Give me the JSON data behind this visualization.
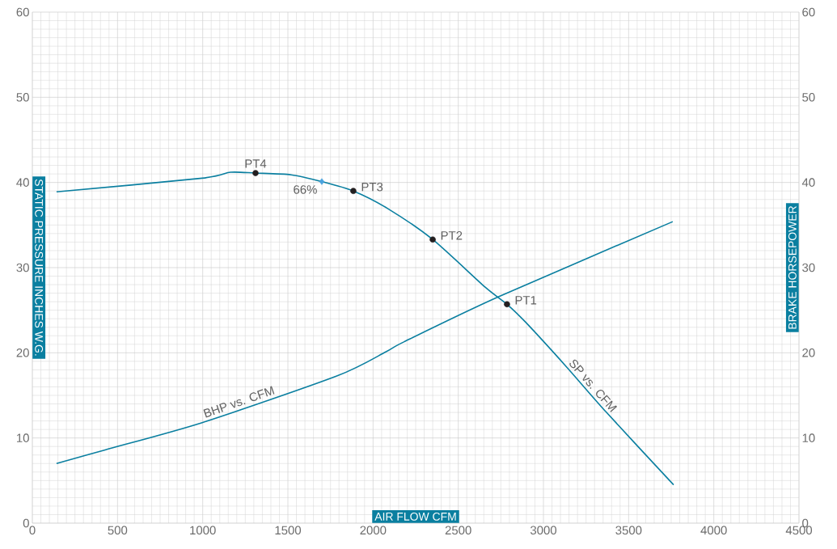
{
  "chart_data": {
    "type": "line",
    "xlabel": "AIR FLOW CFM",
    "ylabel": "STATIC PRESSURE INCHES W.G.",
    "y2label": "BRAKE HORSEPOWER",
    "xlim": [
      0,
      4500
    ],
    "xticks": [
      0,
      500,
      1000,
      1500,
      2000,
      2500,
      3000,
      3500,
      4000,
      4500
    ],
    "ylim": [
      0,
      60
    ],
    "yticks": [
      0,
      10,
      20,
      30,
      40,
      50,
      60
    ],
    "y2lim": [
      0,
      60
    ],
    "y2ticks": [
      0,
      10,
      20,
      30,
      40,
      50,
      60
    ],
    "grid": true,
    "series": [
      {
        "name": "SP vs. CFM",
        "color": "#0a7fa0",
        "x": [
          142,
          997,
          1163,
          1310,
          1519,
          1699,
          1884,
          2089,
          2350,
          2658,
          2786,
          2895,
          3133,
          3370,
          3764
        ],
        "values": [
          38.9,
          40.5,
          41.2,
          41.1,
          40.9,
          40.1,
          39.0,
          36.9,
          33.3,
          27.7,
          25.7,
          23.6,
          18.4,
          13.0,
          4.5
        ]
      },
      {
        "name": "BHP vs. CFM",
        "axis": "y2",
        "color": "#0a7fa0",
        "x": [
          142,
          427,
          997,
          1790,
          2074,
          2183,
          2739,
          3759
        ],
        "values": [
          7.0,
          8.6,
          11.8,
          17.3,
          20.1,
          21.3,
          26.6,
          35.4
        ]
      },
      {
        "type": "scatter",
        "color": "#231f20",
        "marker": "circle",
        "x": [
          2786,
          2350,
          1884,
          1310
        ],
        "values": [
          25.7,
          33.3,
          39.0,
          41.1
        ]
      },
      {
        "type": "scatter",
        "color": "#4aa3df",
        "marker": "diamond",
        "x": [
          1699
        ],
        "values": [
          40.1
        ]
      }
    ],
    "annotations": [
      {
        "text": "PT1",
        "x": 2786,
        "y": 25.7
      },
      {
        "text": "PT2",
        "x": 2350,
        "y": 33.3
      },
      {
        "text": "PT3",
        "x": 1884,
        "y": 39.0
      },
      {
        "text": "PT4",
        "x": 1310,
        "y": 41.1
      },
      {
        "text": "66%",
        "x": 1699,
        "y": 40.1
      }
    ]
  }
}
